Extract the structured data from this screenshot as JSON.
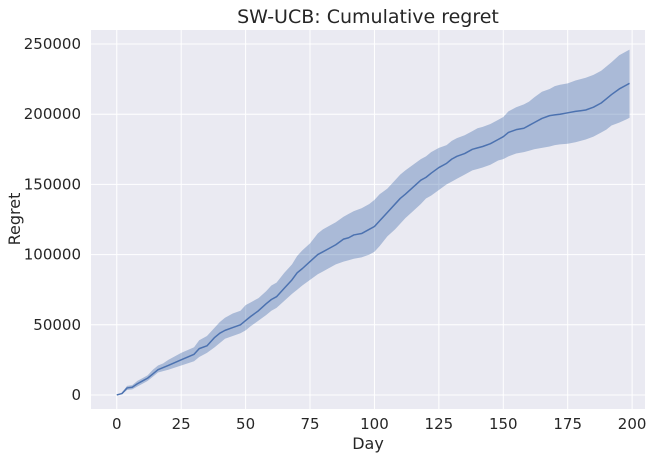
{
  "chart_data": {
    "type": "line",
    "title": "SW-UCB: Cumulative regret",
    "xlabel": "Day",
    "ylabel": "Regret",
    "xlim": [
      -10,
      205
    ],
    "ylim": [
      -10000,
      260000
    ],
    "xticks": [
      0,
      25,
      50,
      75,
      100,
      125,
      150,
      175,
      200
    ],
    "yticks": [
      0,
      50000,
      100000,
      150000,
      200000,
      250000
    ],
    "grid": true,
    "legend": "none",
    "colors": {
      "background": "#EAEAF2",
      "grid": "#FFFFFF",
      "line": "#4C72B0",
      "band": "#4C72B0",
      "text": "#262626"
    },
    "x": [
      0,
      2,
      4,
      6,
      8,
      10,
      12,
      14,
      16,
      18,
      20,
      25,
      30,
      32,
      35,
      38,
      40,
      42,
      45,
      48,
      50,
      52,
      55,
      58,
      60,
      62,
      65,
      68,
      70,
      72,
      75,
      78,
      80,
      82,
      85,
      88,
      90,
      92,
      95,
      98,
      100,
      102,
      105,
      108,
      110,
      112,
      115,
      118,
      120,
      122,
      125,
      128,
      130,
      132,
      135,
      138,
      140,
      142,
      145,
      148,
      150,
      152,
      155,
      158,
      160,
      162,
      165,
      168,
      170,
      172,
      175,
      178,
      180,
      182,
      185,
      188,
      190,
      192,
      195,
      198,
      199
    ],
    "series": [
      {
        "values": [
          0,
          1000,
          5000,
          5500,
          8000,
          10000,
          12000,
          15000,
          18000,
          19500,
          21000,
          25000,
          29000,
          33000,
          35000,
          41000,
          44000,
          46000,
          48000,
          50000,
          53000,
          56000,
          60000,
          65000,
          68000,
          70000,
          76000,
          82000,
          87000,
          90000,
          95000,
          100000,
          102000,
          104000,
          107000,
          111000,
          112000,
          114000,
          115000,
          118000,
          120000,
          124000,
          130000,
          136000,
          140000,
          143000,
          148000,
          153000,
          155000,
          158000,
          162000,
          165000,
          168000,
          170000,
          172000,
          175000,
          176000,
          177000,
          179000,
          182000,
          184000,
          187000,
          189000,
          190000,
          192000,
          194000,
          197000,
          199000,
          199500,
          200000,
          201000,
          202000,
          202500,
          203000,
          205000,
          208000,
          211000,
          214000,
          218000,
          221000,
          222000
        ],
        "lower": [
          0,
          500,
          3500,
          4000,
          6000,
          8000,
          10000,
          13000,
          16000,
          17000,
          18000,
          21000,
          24000,
          27000,
          30000,
          34000,
          37000,
          40000,
          42000,
          44000,
          46000,
          49000,
          53000,
          57000,
          60000,
          62000,
          67000,
          72000,
          75000,
          78000,
          82000,
          86000,
          88000,
          90000,
          93000,
          95000,
          96000,
          97000,
          98000,
          100000,
          102000,
          106000,
          113000,
          118000,
          122000,
          126000,
          131000,
          136000,
          140000,
          142000,
          146000,
          150000,
          152000,
          154000,
          157000,
          160000,
          161000,
          162000,
          164000,
          167000,
          168000,
          170000,
          172000,
          173000,
          174000,
          175000,
          176000,
          177000,
          178000,
          178500,
          179000,
          180000,
          181000,
          182000,
          184000,
          187000,
          189000,
          192000,
          194000,
          196500,
          197500
        ],
        "upper": [
          0,
          1500,
          6500,
          7000,
          10000,
          12000,
          14000,
          18000,
          21000,
          22500,
          25000,
          30000,
          34000,
          39000,
          42000,
          48000,
          52000,
          55000,
          58000,
          60000,
          64000,
          66000,
          69000,
          74000,
          78000,
          80000,
          87000,
          93000,
          99000,
          103000,
          108000,
          115000,
          118000,
          120000,
          123000,
          127000,
          129000,
          131000,
          133000,
          136000,
          139000,
          143000,
          147000,
          153000,
          157000,
          160000,
          164000,
          168000,
          170000,
          173000,
          176000,
          178000,
          181000,
          183000,
          185000,
          188000,
          190000,
          191000,
          193000,
          196000,
          198000,
          202000,
          205000,
          207000,
          209000,
          212000,
          216000,
          218000,
          220000,
          221000,
          222000,
          224000,
          225000,
          226000,
          228000,
          231000,
          234000,
          237000,
          242000,
          245000,
          246000
        ]
      }
    ]
  }
}
